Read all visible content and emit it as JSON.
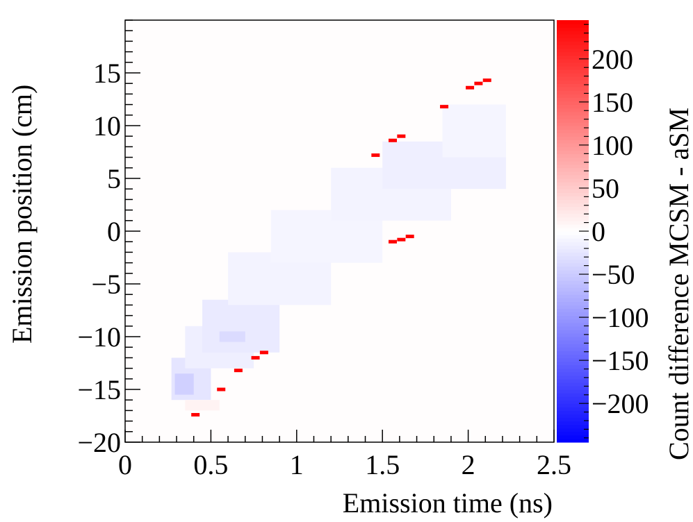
{
  "chart_data": {
    "type": "heatmap",
    "xlabel": "Emission time (ns)",
    "ylabel": "Emission position (cm)",
    "zlabel": "Count difference MCSM - aSM",
    "xlim": [
      0,
      2.5
    ],
    "ylim": [
      -20,
      20
    ],
    "zlim": [
      -245,
      245
    ],
    "xticks": [
      0,
      0.5,
      1,
      1.5,
      2,
      2.5
    ],
    "xtick_labels": [
      "0",
      "0.5",
      "1",
      "1.5",
      "2",
      "2.5"
    ],
    "yticks": [
      -20,
      -15,
      -10,
      -5,
      0,
      5,
      10,
      15
    ],
    "ytick_labels": [
      "−20",
      "−15",
      "−10",
      "−5",
      "0",
      "5",
      "10",
      "15"
    ],
    "zticks": [
      -200,
      -150,
      -100,
      -50,
      0,
      50,
      100,
      150,
      200
    ],
    "ztick_labels": [
      "−200",
      "−150",
      "−100",
      "−50",
      "0",
      "50",
      "100",
      "150",
      "200"
    ],
    "colormap": {
      "low": "#0000ff",
      "mid": "#ffffff",
      "high": "#ff0000"
    },
    "background_value": 2,
    "regions": [
      {
        "x0": 0.27,
        "x1": 0.5,
        "y0": -16.0,
        "y1": -12.0,
        "value": -25
      },
      {
        "x0": 0.29,
        "x1": 0.4,
        "y0": -15.5,
        "y1": -13.5,
        "value": -45
      },
      {
        "x0": 0.35,
        "x1": 0.75,
        "y0": -13.0,
        "y1": -9.0,
        "value": -15
      },
      {
        "x0": 0.45,
        "x1": 0.9,
        "y0": -11.5,
        "y1": -6.5,
        "value": -20
      },
      {
        "x0": 0.55,
        "x1": 0.7,
        "y0": -10.5,
        "y1": -9.5,
        "value": -35
      },
      {
        "x0": 0.6,
        "x1": 1.2,
        "y0": -7.0,
        "y1": -2.0,
        "value": -12
      },
      {
        "x0": 0.85,
        "x1": 1.5,
        "y0": -3.0,
        "y1": 2.0,
        "value": -10
      },
      {
        "x0": 1.2,
        "x1": 1.9,
        "y0": 1.0,
        "y1": 6.0,
        "value": -12
      },
      {
        "x0": 1.5,
        "x1": 2.22,
        "y0": 4.0,
        "y1": 8.5,
        "value": -15
      },
      {
        "x0": 1.85,
        "x1": 2.22,
        "y0": 7.0,
        "y1": 12.0,
        "value": -10
      },
      {
        "x0": 0.35,
        "x1": 0.55,
        "y0": -17.0,
        "y1": -16.0,
        "value": 12
      }
    ],
    "hot_bins": [
      {
        "x": 0.41,
        "y": -17.4,
        "value": 245
      },
      {
        "x": 0.56,
        "y": -15.0,
        "value": 245
      },
      {
        "x": 0.66,
        "y": -13.2,
        "value": 245
      },
      {
        "x": 0.76,
        "y": -12.0,
        "value": 245
      },
      {
        "x": 0.81,
        "y": -11.5,
        "value": 245
      },
      {
        "x": 1.46,
        "y": 7.2,
        "value": 245
      },
      {
        "x": 1.56,
        "y": 8.6,
        "value": 245
      },
      {
        "x": 1.61,
        "y": 9.0,
        "value": 245
      },
      {
        "x": 1.56,
        "y": -1.0,
        "value": 245
      },
      {
        "x": 1.61,
        "y": -0.8,
        "value": 245
      },
      {
        "x": 1.66,
        "y": -0.5,
        "value": 245
      },
      {
        "x": 1.86,
        "y": 11.8,
        "value": 245
      },
      {
        "x": 2.01,
        "y": 13.6,
        "value": 245
      },
      {
        "x": 2.06,
        "y": 14.0,
        "value": 245
      },
      {
        "x": 2.11,
        "y": 14.3,
        "value": 245
      }
    ]
  }
}
